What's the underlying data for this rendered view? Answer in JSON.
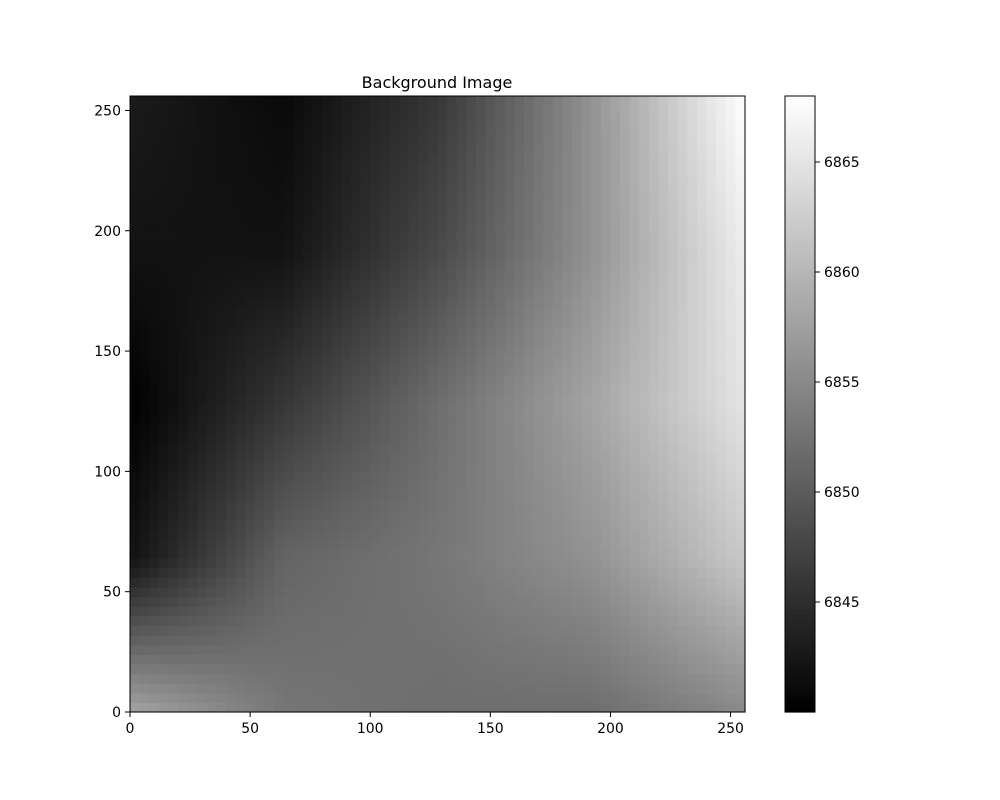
{
  "chart_data": {
    "type": "heatmap",
    "title": "Background Image",
    "xlabel": "",
    "ylabel": "",
    "xlim": [
      0,
      256
    ],
    "ylim": [
      0,
      256
    ],
    "x_ticks": [
      0,
      50,
      100,
      150,
      200,
      250
    ],
    "y_ticks": [
      0,
      50,
      100,
      150,
      200,
      250
    ],
    "colormap": "gray",
    "colorbar": {
      "range": [
        6840,
        6868
      ],
      "ticks": [
        6845,
        6850,
        6855,
        6860,
        6865
      ]
    },
    "x_grid": [
      0,
      64,
      128,
      192,
      256
    ],
    "y_grid": [
      0,
      64,
      128,
      192,
      256
    ],
    "values": [
      [
        6858,
        6853,
        6852,
        6852,
        6855
      ],
      [
        6842,
        6851,
        6853,
        6856,
        6862
      ],
      [
        6840,
        6846,
        6852,
        6858,
        6865
      ],
      [
        6842,
        6842,
        6848,
        6856,
        6866
      ],
      [
        6843,
        6841,
        6846,
        6856,
        6868
      ]
    ],
    "grid": false
  }
}
